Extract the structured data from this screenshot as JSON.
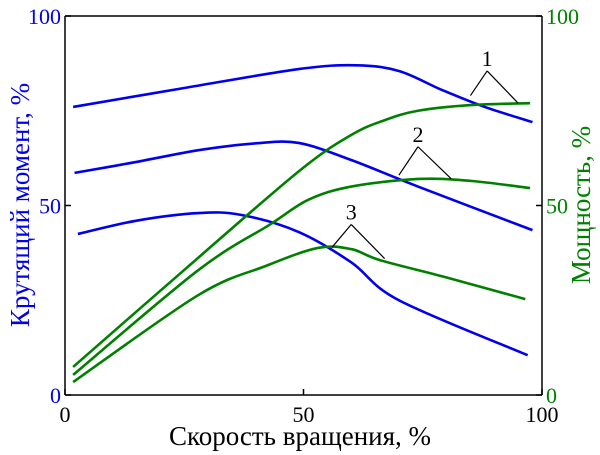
{
  "chart_data": {
    "type": "line",
    "title": "",
    "xlabel": "Скорость вращения, %",
    "ylabel_left": "Крутящий момент, %",
    "ylabel_right": "Мощность, %",
    "xlim": [
      0,
      100
    ],
    "ylim_left": [
      0,
      100
    ],
    "ylim_right": [
      0,
      100
    ],
    "x_ticks": [
      "0",
      "50",
      "100"
    ],
    "y_ticks_left": [
      "0",
      "50",
      "100"
    ],
    "y_ticks_right": [
      "0",
      "50",
      "100"
    ],
    "grid": false,
    "colors": {
      "torque": "#0000ee",
      "power": "#008000",
      "axes": "#000000"
    },
    "series": [
      {
        "name": "torque-1",
        "label": "1",
        "axis": "left",
        "color": "#0000ee",
        "points": [
          [
            1.7,
            76
          ],
          [
            25,
            81
          ],
          [
            49,
            86
          ],
          [
            61,
            87
          ],
          [
            70,
            85.5
          ],
          [
            79,
            80.5
          ],
          [
            88,
            76
          ],
          [
            98,
            72
          ]
        ]
      },
      {
        "name": "torque-2",
        "label": "2",
        "axis": "left",
        "color": "#0000ee",
        "points": [
          [
            2,
            58.6
          ],
          [
            15,
            61.5
          ],
          [
            28,
            64.6
          ],
          [
            40,
            66.4
          ],
          [
            49,
            66.5
          ],
          [
            60,
            62
          ],
          [
            74,
            55
          ],
          [
            98,
            43.5
          ]
        ]
      },
      {
        "name": "torque-3",
        "label": "3",
        "axis": "left",
        "color": "#0000ee",
        "points": [
          [
            2.7,
            42.5
          ],
          [
            15,
            46
          ],
          [
            28,
            48
          ],
          [
            37,
            47.5
          ],
          [
            49,
            43
          ],
          [
            60,
            35
          ],
          [
            70,
            25
          ],
          [
            97,
            10.5
          ]
        ]
      },
      {
        "name": "power-1",
        "label": "1",
        "axis": "right",
        "color": "#008000",
        "points": [
          [
            1.7,
            7.4
          ],
          [
            25,
            33
          ],
          [
            49,
            59
          ],
          [
            60,
            68.6
          ],
          [
            67,
            72.5
          ],
          [
            74,
            75
          ],
          [
            85,
            76.5
          ],
          [
            97.5,
            77
          ]
        ]
      },
      {
        "name": "power-2",
        "label": "2",
        "axis": "right",
        "color": "#008000",
        "points": [
          [
            1.7,
            5.3
          ],
          [
            28,
            33
          ],
          [
            43,
            45
          ],
          [
            51,
            51.5
          ],
          [
            60,
            55
          ],
          [
            74,
            57
          ],
          [
            85,
            56.5
          ],
          [
            97.5,
            54.6
          ]
        ]
      },
      {
        "name": "power-3",
        "label": "3",
        "axis": "right",
        "color": "#008000",
        "points": [
          [
            1.7,
            3.4
          ],
          [
            28,
            26.4
          ],
          [
            42,
            34
          ],
          [
            53,
            38.8
          ],
          [
            60,
            38.5
          ],
          [
            66,
            35.6
          ],
          [
            80,
            31
          ],
          [
            96.5,
            25.3
          ]
        ]
      }
    ],
    "annotations": [
      {
        "text": "1",
        "apex": [
          88.5,
          85.5
        ],
        "targets": [
          [
            85,
            79
          ],
          [
            95,
            77
          ]
        ]
      },
      {
        "text": "2",
        "apex": [
          74,
          65.5
        ],
        "targets": [
          [
            70,
            58
          ],
          [
            81,
            57
          ]
        ]
      },
      {
        "text": "3",
        "apex": [
          60,
          45
        ],
        "targets": [
          [
            56,
            39
          ],
          [
            67,
            36
          ]
        ]
      }
    ]
  }
}
